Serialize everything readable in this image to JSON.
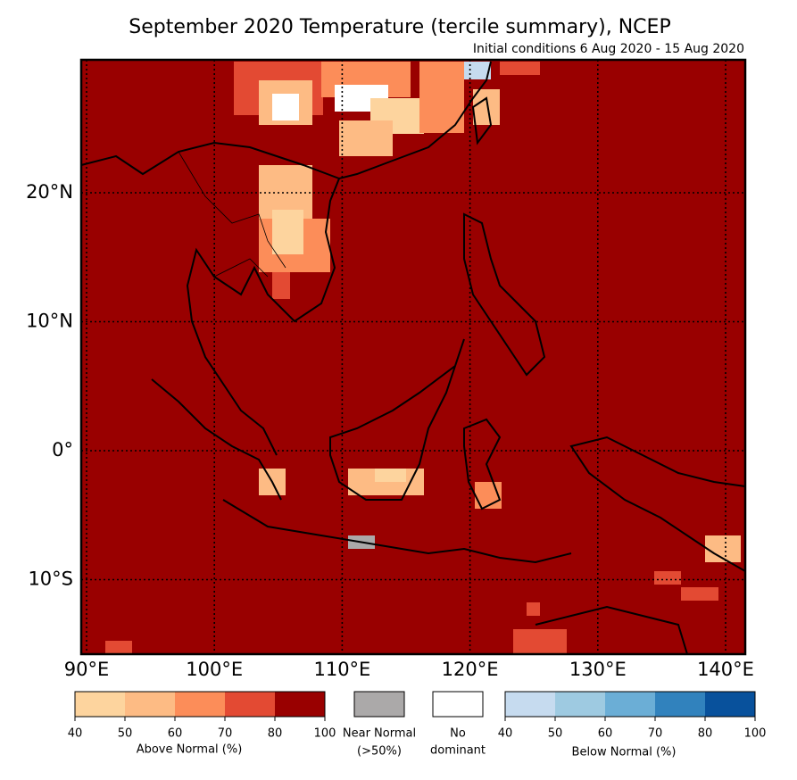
{
  "title": "September 2020 Temperature (tercile summary), NCEP",
  "subtitle": "Initial conditions 6 Aug 2020 - 15 Aug 2020",
  "map": {
    "background": "#990000",
    "lat_labels": [
      "20°N",
      "10°N",
      "0°",
      "10°S"
    ],
    "lon_labels": [
      "90°E",
      "100°E",
      "110°E",
      "120°E",
      "130°E",
      "140°E"
    ]
  },
  "legend": {
    "above": {
      "label": "Above Normal (%)",
      "ticks": [
        40,
        50,
        60,
        70,
        80,
        100
      ],
      "colors": [
        "#fdd49e",
        "#fdbb84",
        "#fc8d59",
        "#e34a33",
        "#990000"
      ]
    },
    "near": {
      "line1": "Near Normal",
      "line2": "(>50%)",
      "color": "#aba9a9"
    },
    "none": {
      "line1": "No",
      "line2": "dominant",
      "color": "#ffffff"
    },
    "below": {
      "label": "Below Normal (%)",
      "ticks": [
        40,
        50,
        60,
        70,
        80,
        100
      ],
      "colors": [
        "#c6dbef",
        "#9ecae1",
        "#6baed6",
        "#3182bd",
        "#08519c"
      ]
    }
  }
}
